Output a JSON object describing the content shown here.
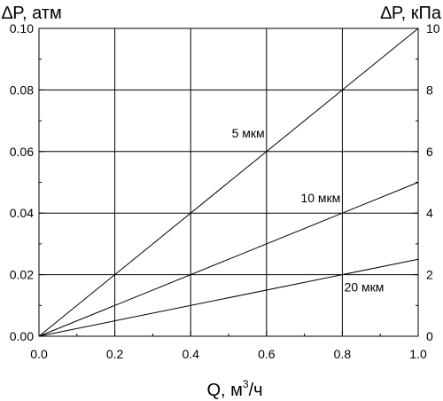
{
  "chart_data": {
    "type": "line",
    "ylabel_left": "∆P, атм",
    "ylabel_right": "∆P, кПа",
    "xlabel_main": "Q, м",
    "xlabel_sup": "3",
    "xlabel_tail": "/ч",
    "xlim": [
      0,
      1.0
    ],
    "ylim_left": [
      0,
      0.1
    ],
    "ylim_right": [
      0,
      10
    ],
    "x_ticks": [
      "0.0",
      "0.2",
      "0.4",
      "0.6",
      "0.8",
      "1.0"
    ],
    "y_left_ticks": [
      "0.00",
      "0.02",
      "0.04",
      "0.06",
      "0.08",
      "0.10"
    ],
    "y_right_ticks": [
      "0",
      "2",
      "4",
      "6",
      "8",
      "10"
    ],
    "grid": true,
    "series": [
      {
        "name": "5 мкм",
        "x": [
          0,
          1.0
        ],
        "y": [
          0,
          0.1
        ]
      },
      {
        "name": "10 мкм",
        "x": [
          0,
          1.0
        ],
        "y": [
          0,
          0.05
        ]
      },
      {
        "name": "20 мкм",
        "x": [
          0,
          1.0
        ],
        "y": [
          0,
          0.025
        ]
      }
    ]
  }
}
